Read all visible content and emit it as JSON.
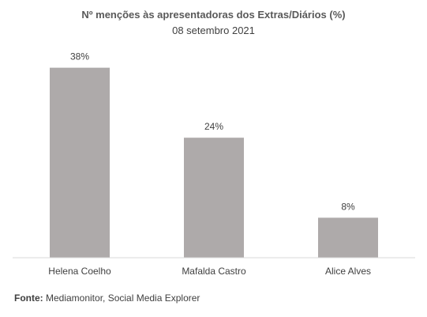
{
  "chart_data": {
    "type": "bar",
    "title": "Nº menções às apresentadoras dos Extras/Diários (%)",
    "subtitle": "08 setembro 2021",
    "categories": [
      "Helena Coelho",
      "Mafalda Castro",
      "Alice Alves"
    ],
    "values": [
      38,
      24,
      8
    ],
    "value_labels": [
      "38%",
      "24%",
      "8%"
    ],
    "unit": "%",
    "xlabel": "",
    "ylabel": "",
    "ylim": [
      0,
      40
    ],
    "grid": false,
    "legend": "none",
    "bar_color": "#AEAAAA"
  },
  "source": {
    "label": "Fonte:",
    "text": " Mediamonitor, Social Media Explorer"
  }
}
